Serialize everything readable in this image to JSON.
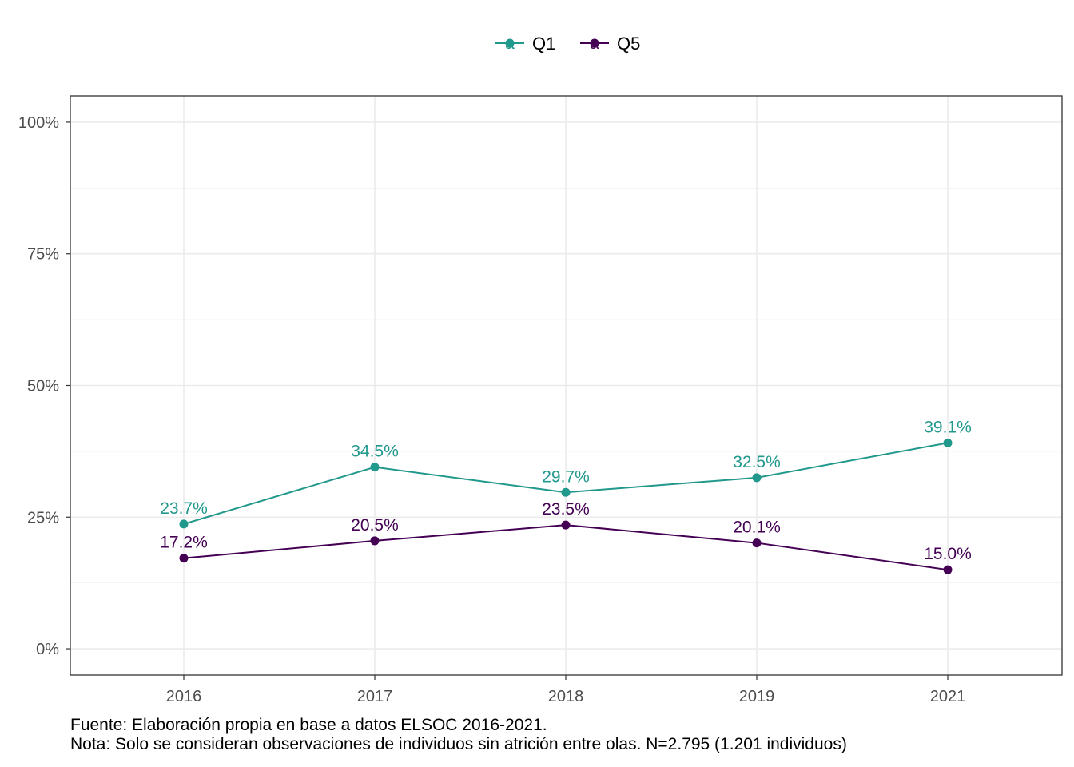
{
  "chart_data": {
    "type": "line",
    "categories": [
      "2016",
      "2017",
      "2018",
      "2019",
      "2021"
    ],
    "series": [
      {
        "name": "Q1",
        "color": "#21988C",
        "values": [
          23.7,
          34.5,
          29.7,
          32.5,
          39.1
        ],
        "labels": [
          "23.7%",
          "34.5%",
          "29.7%",
          "32.5%",
          "39.1%"
        ]
      },
      {
        "name": "Q5",
        "color": "#440154",
        "values": [
          17.2,
          20.5,
          23.5,
          20.1,
          15.0
        ],
        "labels": [
          "17.2%",
          "20.5%",
          "23.5%",
          "20.1%",
          "15.0%"
        ]
      }
    ],
    "ylim": [
      -5,
      105
    ],
    "yticks": [
      0,
      25,
      50,
      75,
      100
    ],
    "ytick_labels": [
      "0%",
      "25%",
      "50%",
      "75%",
      "100%"
    ],
    "legend_position": "top",
    "legend_key_glyph": "a",
    "grid": true,
    "title": "",
    "xlabel": "",
    "ylabel": ""
  },
  "caption": {
    "line1": "Fuente: Elaboración propia en base a datos ELSOC 2016-2021.",
    "line2": "Nota: Solo se consideran observaciones de individuos sin atrición entre olas. N=2.795 (1.201 individuos)"
  }
}
